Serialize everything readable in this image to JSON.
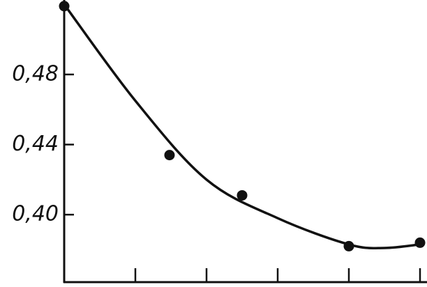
{
  "chart_data": {
    "type": "scatter",
    "series": [
      {
        "name": null,
        "kind": "points",
        "color": "#111111",
        "x": [
          0,
          1.48,
          2.5,
          4,
          5
        ],
        "values": [
          0.519,
          0.434,
          0.411,
          0.382,
          0.384
        ]
      },
      {
        "name": null,
        "kind": "curve",
        "color": "#111111",
        "x": [
          0,
          1,
          2,
          3,
          4,
          4.5,
          5
        ],
        "values": [
          0.52,
          0.465,
          0.42,
          0.398,
          0.383,
          0.381,
          0.383
        ]
      }
    ],
    "xlim": [
      0,
      5
    ],
    "xticks": [
      0,
      1,
      2,
      3,
      4,
      5
    ],
    "ylim": [
      0.3615,
      0.5225
    ],
    "yticks": [
      {
        "value": 0.4,
        "label": "0,40"
      },
      {
        "value": 0.44,
        "label": "0,44"
      },
      {
        "value": 0.48,
        "label": "0,48"
      }
    ],
    "grid": false
  }
}
